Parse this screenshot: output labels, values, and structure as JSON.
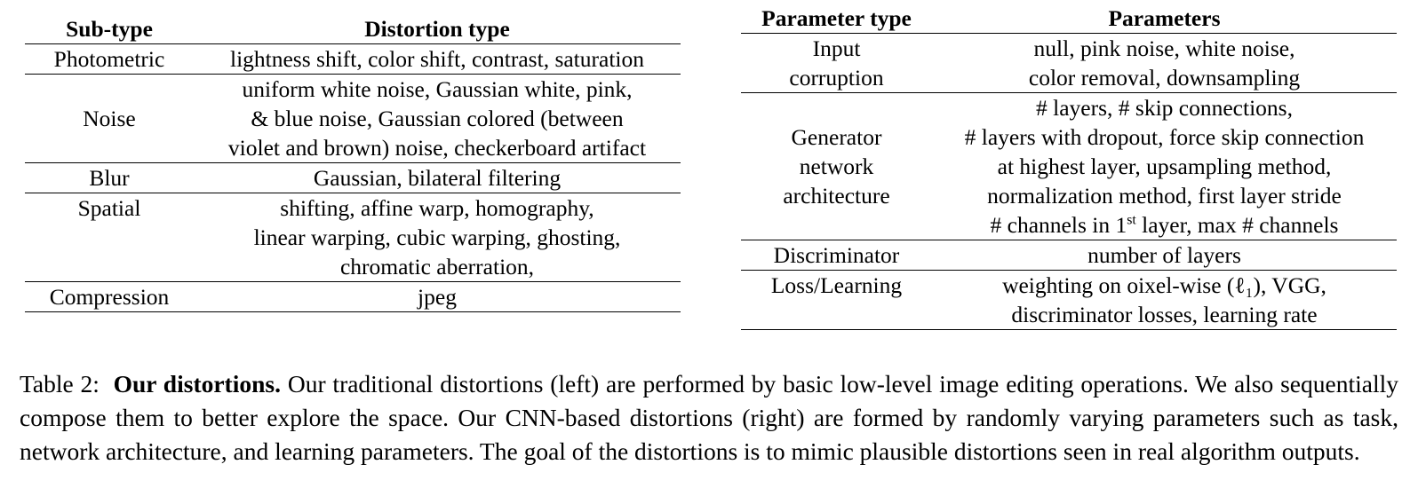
{
  "left_table": {
    "headers": [
      "Sub-type",
      "Distortion type"
    ],
    "rows": [
      {
        "subtype": "Photometric",
        "lines": [
          "lightness shift, color shift, contrast, saturation"
        ]
      },
      {
        "subtype": "Noise",
        "lines": [
          "uniform white noise, Gaussian white, pink,",
          "& blue noise, Gaussian colored (between",
          "violet and brown) noise, checkerboard artifact"
        ]
      },
      {
        "subtype": "Blur",
        "lines": [
          "Gaussian, bilateral filtering"
        ]
      },
      {
        "subtype": "Spatial",
        "lines": [
          "shifting, affine warp, homography,",
          "linear warping, cubic warping, ghosting,",
          "chromatic aberration,"
        ]
      },
      {
        "subtype": "Compression",
        "lines": [
          "jpeg"
        ]
      }
    ]
  },
  "right_table": {
    "headers": [
      "Parameter type",
      "Parameters"
    ],
    "rows": [
      {
        "type_lines": [
          "Input",
          "corruption"
        ],
        "lines": [
          "null, pink noise, white noise,",
          "color removal, downsampling"
        ]
      },
      {
        "type_lines": [
          "Generator",
          "network",
          "architecture"
        ],
        "lines": [
          "# layers, # skip connections,",
          "# layers with dropout, force skip connection",
          "at highest layer, upsampling method,",
          "normalization method, first layer stride"
        ],
        "last_line": {
          "prefix": "# channels in ",
          "base": "1",
          "sup": "st",
          "suffix": " layer, max # channels"
        }
      },
      {
        "type_lines": [
          "Discriminator"
        ],
        "lines": [
          "number of layers"
        ]
      },
      {
        "type_lines": [
          "Loss/Learning"
        ],
        "lines": [
          "weighting on oixel-wise (ℓ₁), VGG,",
          "discriminator losses, learning rate"
        ]
      }
    ]
  },
  "caption": {
    "label": "Table 2:",
    "bold": "Our distortions.",
    "text": "Our traditional distortions (left) are performed by basic low-level image editing operations. We also sequentially compose them to better explore the space. Our CNN-based distortions (right) are formed by randomly varying parameters such as task, network architecture, and learning parameters. The goal of the distortions is to mimic plausible distortions seen in real algorithm outputs."
  }
}
